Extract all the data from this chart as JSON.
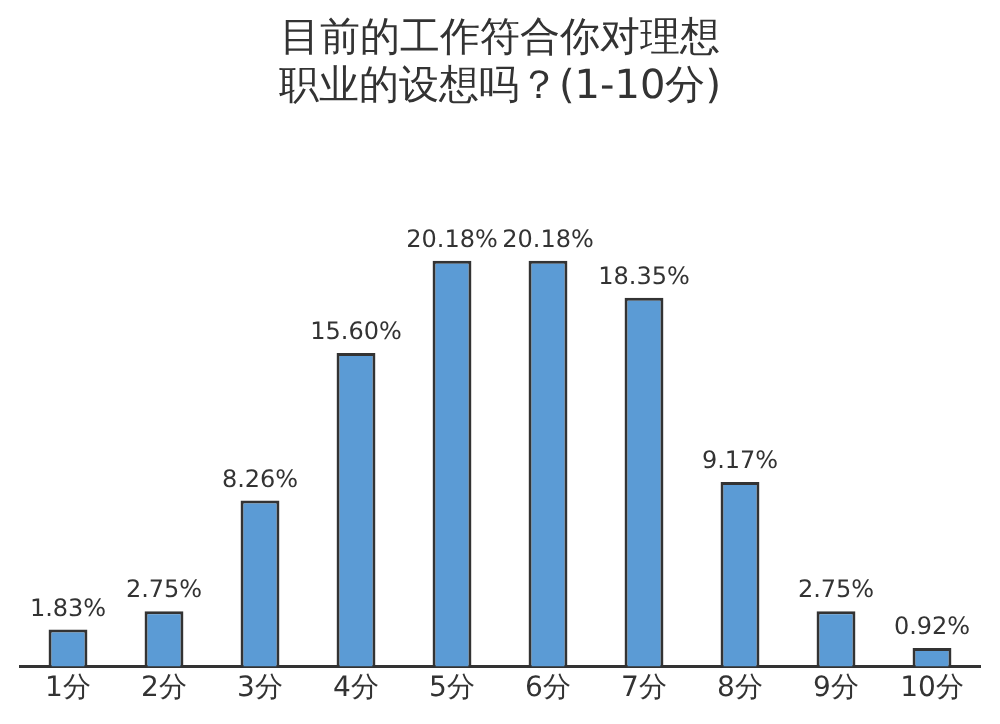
{
  "chart_data": {
    "type": "bar",
    "title": "目前的工作符合你对理想职业的设想吗？(1-10分)",
    "categories": [
      "1分",
      "2分",
      "3分",
      "4分",
      "5分",
      "6分",
      "7分",
      "8分",
      "9分",
      "10分"
    ],
    "values": [
      1.83,
      2.75,
      8.26,
      15.6,
      20.18,
      20.18,
      18.35,
      9.17,
      2.75,
      0.92
    ],
    "value_labels": [
      "1.83%",
      "2.75%",
      "8.26%",
      "15.60%",
      "20.18%",
      "20.18%",
      "18.35%",
      "9.17%",
      "2.75%",
      "0.92%"
    ],
    "color": "#5b9bd5",
    "grid": false,
    "legend": false
  }
}
